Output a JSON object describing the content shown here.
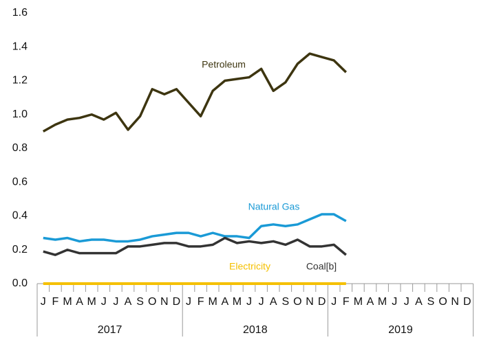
{
  "chart_data": {
    "type": "line",
    "categories": [
      "J",
      "F",
      "M",
      "A",
      "M",
      "J",
      "J",
      "A",
      "S",
      "O",
      "N",
      "D",
      "J",
      "F",
      "M",
      "A",
      "M",
      "J",
      "J",
      "A",
      "S",
      "O",
      "N",
      "D",
      "J",
      "F",
      "M",
      "A",
      "M",
      "J",
      "J",
      "A",
      "S",
      "O",
      "N",
      "D"
    ],
    "years": [
      "2017",
      "2018",
      "2019"
    ],
    "series": [
      {
        "name": "Petroleum",
        "color": "#3d3510",
        "values": [
          0.9,
          0.94,
          0.97,
          0.98,
          1.0,
          0.97,
          1.01,
          0.91,
          0.99,
          1.15,
          1.12,
          1.15,
          1.07,
          0.99,
          1.14,
          1.2,
          1.21,
          1.22,
          1.27,
          1.14,
          1.19,
          1.3,
          1.36,
          1.34,
          1.32,
          1.25,
          null,
          null,
          null,
          null,
          null,
          null,
          null,
          null,
          null,
          null
        ]
      },
      {
        "name": "Natural Gas",
        "color": "#1a9ad6",
        "values": [
          0.27,
          0.26,
          0.27,
          0.25,
          0.26,
          0.26,
          0.25,
          0.25,
          0.26,
          0.28,
          0.29,
          0.3,
          0.3,
          0.28,
          0.3,
          0.28,
          0.28,
          0.27,
          0.34,
          0.35,
          0.34,
          0.35,
          0.38,
          0.41,
          0.41,
          0.37,
          null,
          null,
          null,
          null,
          null,
          null,
          null,
          null,
          null,
          null
        ]
      },
      {
        "name": "Coal[b]",
        "color": "#333333",
        "values": [
          0.19,
          0.17,
          0.2,
          0.18,
          0.18,
          0.18,
          0.18,
          0.22,
          0.22,
          0.23,
          0.24,
          0.24,
          0.22,
          0.22,
          0.23,
          0.27,
          0.24,
          0.25,
          0.24,
          0.25,
          0.23,
          0.26,
          0.22,
          0.22,
          0.23,
          0.17,
          null,
          null,
          null,
          null,
          null,
          null,
          null,
          null,
          null,
          null
        ]
      },
      {
        "name": "Electricity",
        "color": "#f5c000",
        "values": [
          0,
          0,
          0,
          0,
          0,
          0,
          0,
          0,
          0,
          0,
          0,
          0,
          0,
          0,
          0,
          0,
          0,
          0,
          0,
          0,
          0,
          0,
          0,
          0,
          0,
          0,
          null,
          null,
          null,
          null,
          null,
          null,
          null,
          null,
          null,
          null
        ]
      }
    ],
    "ylim": [
      0,
      1.6
    ],
    "yticks": [
      {
        "value": 0,
        "label": "0.0"
      },
      {
        "value": 0.2,
        "label": "0.2"
      },
      {
        "value": 0.4,
        "label": "0.4"
      },
      {
        "value": 0.6,
        "label": "0.6"
      },
      {
        "value": 0.8,
        "label": "0.8"
      },
      {
        "value": 1.0,
        "label": "1.0"
      },
      {
        "value": 1.2,
        "label": "1.2"
      },
      {
        "value": 1.4,
        "label": "1.4"
      },
      {
        "value": 1.6,
        "label": "1.6"
      }
    ]
  }
}
